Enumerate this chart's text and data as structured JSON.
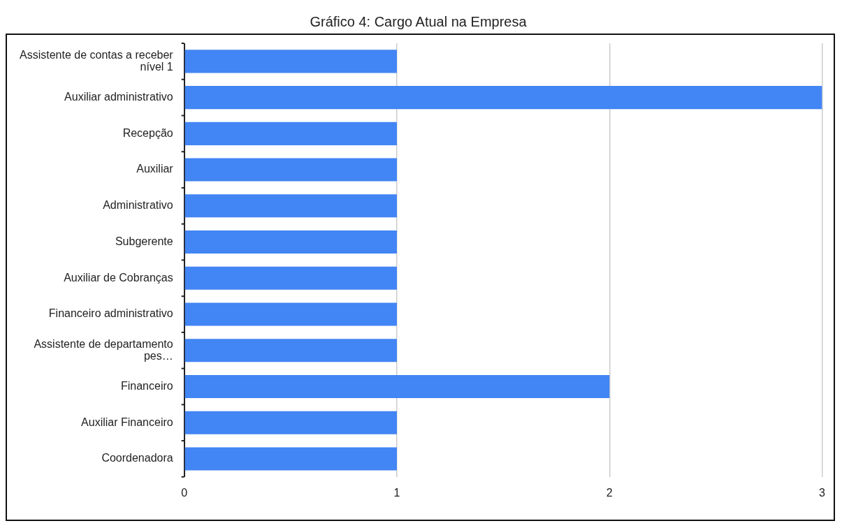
{
  "chart_data": {
    "type": "bar",
    "orientation": "horizontal",
    "title": "Gráfico 4: Cargo Atual na Empresa",
    "categories": [
      "Assistente de contas a receber nível 1",
      "Auxiliar administrativo",
      "Recepção",
      "Auxiliar",
      "Administrativo",
      "Subgerente",
      "Auxiliar de Cobranças",
      "Financeiro administrativo",
      "Assistente de departamento pes…",
      "Financeiro",
      "Auxiliar Financeiro",
      "Coordenadora"
    ],
    "values": [
      1,
      3,
      1,
      1,
      1,
      1,
      1,
      1,
      1,
      2,
      1,
      1
    ],
    "color": "#4285f4",
    "xlim": [
      0,
      3
    ],
    "xticks": [
      0,
      1,
      2,
      3
    ],
    "grid": "x",
    "legend": false
  }
}
